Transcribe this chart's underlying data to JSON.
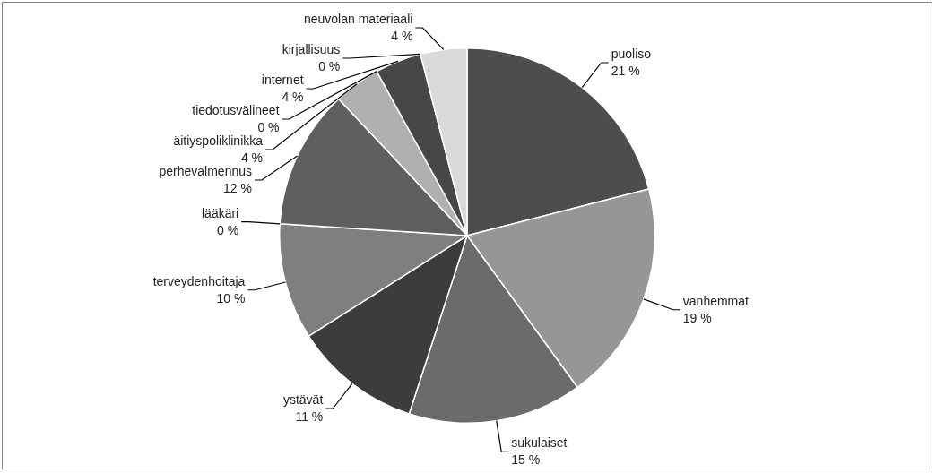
{
  "chart_data": {
    "type": "pie",
    "categories": [
      "puoliso",
      "vanhemmat",
      "sukulaiset",
      "ystävät",
      "terveydenhoitaja",
      "lääkäri",
      "perhevalmennus",
      "äitiyspoliklinikka",
      "tiedotusvälineet",
      "internet",
      "kirjallisuus",
      "neuvolan materiaali"
    ],
    "values": [
      21,
      19,
      15,
      11,
      10,
      0,
      12,
      4,
      0,
      4,
      0,
      4
    ],
    "value_labels": [
      "21 %",
      "19 %",
      "15 %",
      "11 %",
      "10 %",
      "0 %",
      "12 %",
      "4 %",
      "0 %",
      "4 %",
      "0 %",
      "4 %"
    ],
    "colors": [
      "#4d4d4d",
      "#969696",
      "#6b6b6b",
      "#3c3c3c",
      "#7f7f7f",
      "#a5a5a5",
      "#5f5f5f",
      "#b0b0b0",
      "#888888",
      "#474747",
      "#777777",
      "#d9d9d9"
    ],
    "legend": false
  }
}
